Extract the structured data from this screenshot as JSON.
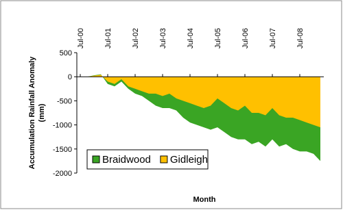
{
  "chart_data": {
    "type": "area",
    "ylabel": [
      "Accumulation Rainfall Anomaly",
      "(mm)"
    ],
    "xlabel": "Month",
    "categories": [
      "Jul-00",
      null,
      null,
      null,
      "Jul-01",
      null,
      null,
      null,
      "Jul-02",
      null,
      null,
      null,
      "Jul-03",
      null,
      null,
      null,
      "Jul-04",
      null,
      null,
      null,
      "Jul-05",
      null,
      null,
      null,
      "Jul-06",
      null,
      null,
      null,
      "Jul-07",
      null,
      null,
      null,
      "Jul-08",
      null,
      null,
      null
    ],
    "series": [
      {
        "name": "Braidwood",
        "color": "#3aa524",
        "values": [
          0,
          0,
          30,
          50,
          -150,
          -200,
          -100,
          -250,
          -350,
          -400,
          -500,
          -600,
          -650,
          -650,
          -700,
          -850,
          -950,
          -1000,
          -1050,
          -1100,
          -1050,
          -1150,
          -1250,
          -1300,
          -1300,
          -1400,
          -1350,
          -1450,
          -1300,
          -1450,
          -1400,
          -1500,
          -1550,
          -1550,
          -1600,
          -1750
        ]
      },
      {
        "name": "Gidleigh",
        "color": "#ffc000",
        "values": [
          0,
          0,
          20,
          40,
          -100,
          -150,
          -50,
          -200,
          -250,
          -300,
          -350,
          -350,
          -400,
          -350,
          -450,
          -500,
          -550,
          -600,
          -650,
          -600,
          -450,
          -550,
          -650,
          -700,
          -600,
          -750,
          -750,
          -800,
          -650,
          -800,
          -850,
          -850,
          -900,
          -950,
          -1000,
          -1050
        ]
      }
    ],
    "ylim": [
      -2000,
      500
    ],
    "yticks": [
      -2000,
      -1500,
      -1000,
      -500,
      0,
      500
    ],
    "legend": "lower left"
  }
}
